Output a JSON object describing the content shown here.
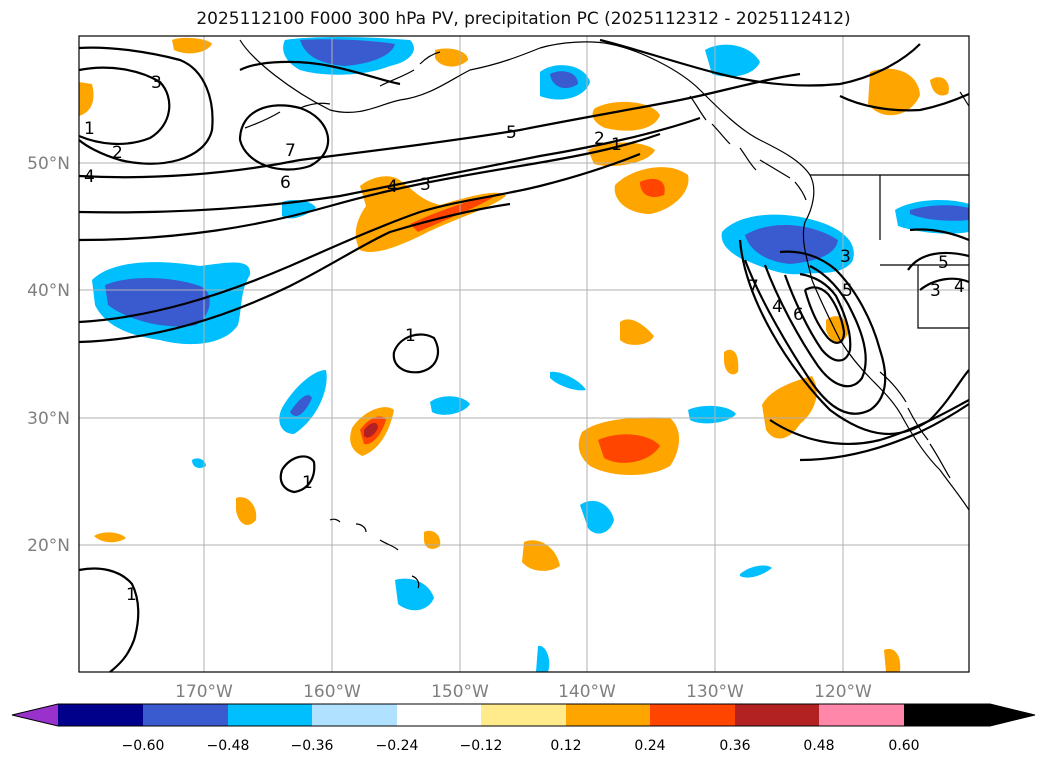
{
  "title": "2025112100 F000 300 hPa PV, precipitation PC (2025112312 - 2025112412)",
  "lon_ticks": [
    "170°W",
    "160°W",
    "150°W",
    "140°W",
    "130°W",
    "120°W"
  ],
  "lat_ticks": [
    "50°N",
    "40°N",
    "30°N",
    "20°N"
  ],
  "colorbar": {
    "ticks": [
      "−0.60",
      "−0.48",
      "−0.36",
      "−0.24",
      "−0.12",
      "0.12",
      "0.24",
      "0.36",
      "0.48",
      "0.60"
    ],
    "colors": [
      "#9932cc",
      "#00008b",
      "#3a5bcf",
      "#00bfff",
      "#b0e2ff",
      "#ffffff",
      "#ffeb8c",
      "#ffa500",
      "#ff4500",
      "#b22222",
      "#ff88aa"
    ]
  },
  "contour_labels": [
    "3",
    "1",
    "2",
    "4",
    "6",
    "7",
    "5",
    "4",
    "3",
    "2",
    "1",
    "1",
    "1",
    "1",
    "7",
    "4",
    "6",
    "3",
    "5",
    "4",
    "3",
    "5"
  ],
  "colors": {
    "ocean": "#ffffff",
    "frame": "#000000",
    "grid": "#b0b0b0",
    "coast": "#000000",
    "contour": "#000000"
  }
}
